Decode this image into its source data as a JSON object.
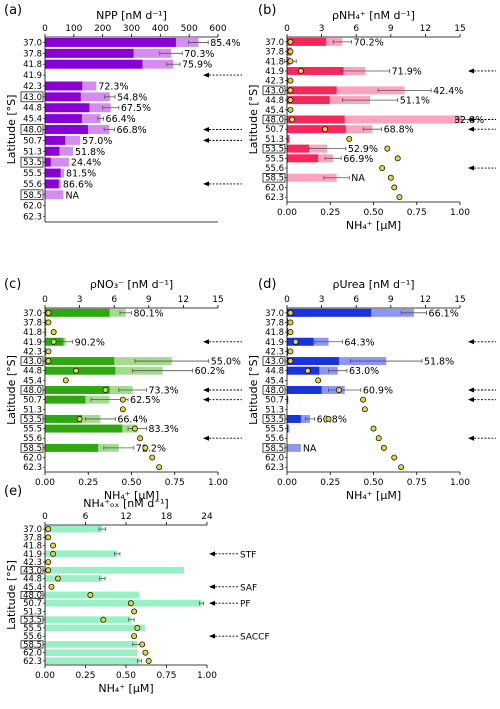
{
  "latitudes": [
    "37.0",
    "37.8",
    "41.8",
    "41.9",
    "42.3",
    "43.0",
    "44.8",
    "45.4",
    "48.0",
    "50.7",
    "51.3",
    "53.5",
    "55.5",
    "55.6",
    "58.5",
    "62.0",
    "62.3"
  ],
  "boxed_latitudes": [
    "43.0",
    "48.0",
    "53.5",
    "58.5"
  ],
  "y_axis_label": "Latitude [°S]",
  "bottom_axis_label": "NH₄⁺ [µM]",
  "fronts": [
    {
      "name": "STF",
      "latitude": "41.9"
    },
    {
      "name": "SAF",
      "latitude": "45.4"
    },
    {
      "name": "PF",
      "latitude": "50.7"
    },
    {
      "name": "SACCF",
      "latitude": "55.6"
    }
  ],
  "colors": {
    "npp_dark": "#8a00d4",
    "npp_light": "#d58cf2",
    "nh4_dark": "#f5275b",
    "nh4_light": "#fda3bd",
    "no3_dark": "#2ea80f",
    "no3_light": "#a3dc8c",
    "urea_dark": "#1a33e0",
    "urea_light": "#8c96f5",
    "nh4ox": "#9af0c5",
    "marker": "#e2d634"
  },
  "chart_data": [
    {
      "panel": "(a)",
      "type": "bar",
      "title": "NPP [nM d⁻¹]",
      "top_axis": {
        "range": [
          0,
          600
        ],
        "ticks": [
          "0",
          "100",
          "200",
          "300",
          "400",
          "500",
          "600"
        ]
      },
      "series": [
        {
          "role": "total",
          "values": [
            532,
            437,
            445,
            null,
            178,
            225,
            228,
            193,
            223,
            122,
            97,
            83,
            66,
            55,
            64,
            null,
            null
          ]
        },
        {
          "role": "fraction",
          "values": [
            454,
            307,
            338,
            null,
            129,
            124,
            154,
            128,
            149,
            70,
            50,
            20,
            54,
            48,
            null,
            null,
            null
          ]
        }
      ],
      "error": [
        34,
        39,
        23,
        null,
        0,
        18,
        28,
        10,
        18,
        0,
        0,
        0,
        0,
        0,
        0,
        null,
        null
      ],
      "labels": [
        "85.4%",
        "70.3%",
        "75.9%",
        "",
        "72.3%",
        "54.8%",
        "67.5%",
        "66.4%",
        "66.8%",
        "57.0%",
        "51.8%",
        "24.4%",
        "81.5%",
        "86.6%",
        "NA",
        "",
        ""
      ],
      "arrows": [
        "41.9",
        "48.0",
        "50.7",
        "55.6"
      ]
    },
    {
      "panel": "(b)",
      "type": "bar",
      "title": "ρNH₄⁺ [nM d⁻¹]",
      "top_axis": {
        "range": [
          0,
          15
        ],
        "ticks": [
          "0",
          "3",
          "6",
          "9",
          "12",
          "15"
        ]
      },
      "bottom_axis": {
        "range": [
          0,
          1.0
        ],
        "ticks": [
          "0.00",
          "0.25",
          "0.50",
          "0.75",
          "1.00"
        ]
      },
      "series": [
        {
          "role": "total",
          "values": [
            4.8,
            0.4,
            0.3,
            6.8,
            0.1,
            10.2,
            7.2,
            0,
            15.2,
            7.4,
            0.2,
            3.5,
            4.0,
            0,
            4.3,
            0,
            0
          ]
        },
        {
          "role": "fraction",
          "values": [
            3.4,
            0.4,
            0.2,
            4.9,
            0.1,
            4.3,
            3.7,
            0,
            5.0,
            5.1,
            0.2,
            1.9,
            2.7,
            0,
            null,
            0,
            0
          ]
        }
      ],
      "error": [
        0.8,
        0,
        0.5,
        2.1,
        0,
        2.3,
        2.4,
        0,
        0.6,
        0.8,
        0,
        1.6,
        0.7,
        0,
        1.1,
        0,
        0
      ],
      "markers": [
        0.02,
        0.02,
        0.02,
        0.08,
        0.02,
        0.02,
        0.02,
        0.02,
        0.03,
        0.22,
        0.36,
        0.58,
        0.64,
        0.55,
        0.6,
        0.62,
        0.65
      ],
      "labels": [
        "70.2%",
        "",
        "",
        "71.9%",
        "",
        "42.4%",
        "51.1%",
        "",
        "32.8%",
        "68.8%",
        "",
        "52.9%",
        "66.9%",
        "",
        "NA",
        "",
        ""
      ],
      "arrows": [
        "41.9",
        "48.0",
        "50.7",
        "55.6"
      ]
    },
    {
      "panel": "(c)",
      "type": "bar",
      "title": "ρNO₃⁻ [nM d⁻¹]",
      "top_axis": {
        "range": [
          0,
          15
        ],
        "ticks": [
          "0",
          "3",
          "6",
          "9",
          "12",
          "15"
        ]
      },
      "bottom_axis": {
        "range": [
          0,
          1.0
        ],
        "ticks": [
          "0.00",
          "0.25",
          "0.50",
          "0.75",
          "1.00"
        ]
      },
      "series": [
        {
          "role": "total",
          "values": [
            7.0,
            0.1,
            0.1,
            1.8,
            0.1,
            11.0,
            10.2,
            0,
            7.6,
            5.6,
            0,
            4.8,
            8.0,
            0,
            6.4,
            0,
            0
          ]
        },
        {
          "role": "fraction",
          "values": [
            5.6,
            0.1,
            0.1,
            1.6,
            0.1,
            6.0,
            6.1,
            0,
            5.6,
            3.5,
            0,
            3.2,
            6.7,
            0,
            4.6,
            0,
            0
          ]
        }
      ],
      "error": [
        0.5,
        0,
        0,
        0.6,
        0,
        3.2,
        2.6,
        0,
        1.2,
        1.6,
        0,
        1.3,
        0.8,
        0,
        1.3,
        0,
        0
      ],
      "markers": [
        0.02,
        0.02,
        0.05,
        0.05,
        0.02,
        0.02,
        0.18,
        0.12,
        0.35,
        0.45,
        0.45,
        0.2,
        0.52,
        0.55,
        0.58,
        0.62,
        0.66
      ],
      "labels": [
        "80.1%",
        "",
        "",
        "90.2%",
        "",
        "55.0%",
        "60.2%",
        "",
        "73.3%",
        "62.5%",
        "",
        "66.4%",
        "83.3%",
        "",
        "72.2%",
        "",
        ""
      ],
      "arrows": [
        "41.9",
        "48.0",
        "50.7",
        "55.6"
      ]
    },
    {
      "panel": "(d)",
      "type": "bar",
      "title": "ρUrea [nM d⁻¹]",
      "top_axis": {
        "range": [
          0,
          15
        ],
        "ticks": [
          "0",
          "3",
          "6",
          "9",
          "12",
          "15"
        ]
      },
      "bottom_axis": {
        "range": [
          0,
          1.0
        ],
        "ticks": [
          "0.00",
          "0.25",
          "0.50",
          "0.75",
          "1.00"
        ]
      },
      "series": [
        {
          "role": "total",
          "values": [
            11.0,
            0.1,
            0.1,
            3.6,
            0.1,
            8.6,
            4.4,
            0,
            5.0,
            0.1,
            0,
            2.0,
            0.2,
            0,
            1.2,
            0,
            0
          ]
        },
        {
          "role": "fraction",
          "values": [
            7.3,
            0.1,
            0.1,
            2.3,
            0.1,
            4.5,
            2.8,
            0,
            3.0,
            0.1,
            0,
            1.2,
            0.1,
            0,
            null,
            0,
            0
          ]
        }
      ],
      "error": [
        1.1,
        0,
        0,
        1.2,
        0,
        3.1,
        0.8,
        0,
        1.4,
        0,
        0,
        0.4,
        0,
        0,
        0,
        0,
        0
      ],
      "markers": [
        0.02,
        0.02,
        0.02,
        0.05,
        0.02,
        0.02,
        0.12,
        0.18,
        0.3,
        0.44,
        0.45,
        0.24,
        0.5,
        0.53,
        0.56,
        0.62,
        0.66
      ],
      "labels": [
        "66.1%",
        "",
        "",
        "64.3%",
        "",
        "51.8%",
        "63.0%",
        "",
        "60.9%",
        "",
        "",
        "60.8%",
        "",
        "",
        "NA",
        "",
        ""
      ],
      "arrows": [
        "41.9",
        "48.0",
        "50.7",
        "55.6"
      ]
    },
    {
      "panel": "(e)",
      "type": "bar",
      "title": "NH₄⁺ₒₓ [nM d⁻¹]",
      "top_axis": {
        "range": [
          0,
          24
        ],
        "ticks": [
          "0",
          "6",
          "12",
          "18",
          "24"
        ]
      },
      "bottom_axis": {
        "range": [
          0,
          1.0
        ],
        "ticks": [
          "0.00",
          "0.25",
          "0.50",
          "0.75",
          "1.00"
        ]
      },
      "series": [
        {
          "role": "total",
          "values": [
            8.5,
            0.1,
            0.1,
            10.7,
            0.1,
            20.6,
            8.5,
            0.1,
            14.0,
            23.2,
            0.1,
            12.8,
            14.8,
            0.1,
            13.7,
            13.7,
            14.0
          ]
        }
      ],
      "error": [
        0.5,
        0,
        0,
        0.4,
        0,
        0,
        0.4,
        0,
        0,
        0.3,
        0,
        0.4,
        0,
        0,
        0.7,
        0,
        0.3
      ],
      "markers": [
        0.02,
        0.02,
        0.05,
        0.05,
        0.02,
        0.02,
        0.08,
        0.04,
        0.28,
        0.53,
        0.55,
        0.36,
        0.57,
        0.55,
        0.6,
        0.62,
        0.64
      ],
      "labels": [
        "",
        "",
        "",
        "",
        "",
        "",
        "",
        "",
        "",
        "",
        "",
        "",
        "",
        "",
        "",
        "",
        ""
      ],
      "fronts_shown": true
    }
  ]
}
